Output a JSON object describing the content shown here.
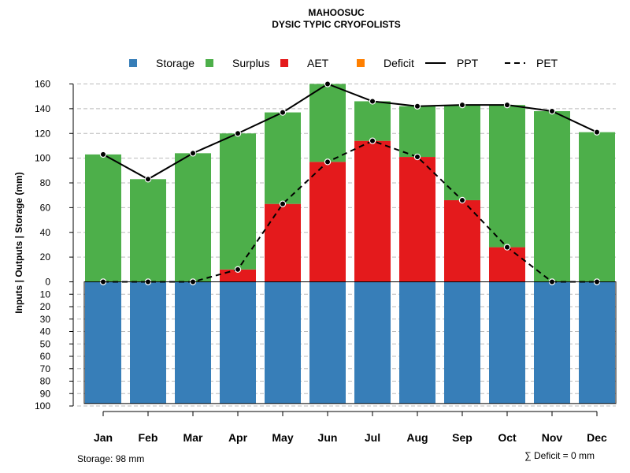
{
  "chart_data": {
    "type": "bar",
    "title": "MAHOOSUC",
    "subtitle": "DYSIC TYPIC CRYOFOLISTS",
    "ylabel": "Inputs | Outputs | Storage    (mm)",
    "categories": [
      "Jan",
      "Feb",
      "Mar",
      "Apr",
      "May",
      "Jun",
      "Jul",
      "Aug",
      "Sep",
      "Oct",
      "Nov",
      "Dec"
    ],
    "ylim_top": [
      0,
      160
    ],
    "ylim_bottom": [
      0,
      100
    ],
    "yticks_top": [
      "0",
      "20",
      "40",
      "60",
      "80",
      "100",
      "120",
      "140",
      "160"
    ],
    "yticks_bottom": [
      "10",
      "20",
      "30",
      "40",
      "50",
      "60",
      "70",
      "80",
      "90",
      "100"
    ],
    "series": [
      {
        "name": "Storage",
        "kind": "bar_below",
        "color": "#377EB8",
        "values": [
          98,
          98,
          98,
          98,
          98,
          98,
          98,
          98,
          98,
          98,
          98,
          98
        ]
      },
      {
        "name": "Surplus",
        "kind": "bar_stack",
        "color": "#4DAF4A",
        "values": [
          103,
          83,
          104,
          110,
          74,
          63,
          32,
          41,
          77,
          115,
          138,
          121
        ]
      },
      {
        "name": "AET",
        "kind": "bar_stack",
        "color": "#E41A1C",
        "values": [
          0,
          0,
          0,
          10,
          63,
          97,
          114,
          101,
          66,
          28,
          0,
          0
        ]
      },
      {
        "name": "Deficit",
        "kind": "bar_stack",
        "color": "#FF7F00",
        "values": [
          0,
          0,
          0,
          0,
          0,
          0,
          0,
          0,
          0,
          0,
          0,
          0
        ]
      },
      {
        "name": "PPT",
        "kind": "line_solid",
        "color": "#000000",
        "values": [
          103,
          83,
          104,
          120,
          137,
          160,
          146,
          142,
          143,
          143,
          138,
          121
        ]
      },
      {
        "name": "PET",
        "kind": "line_dashed",
        "color": "#000000",
        "values": [
          0,
          0,
          0,
          10,
          63,
          97,
          114,
          101,
          66,
          28,
          0,
          0
        ]
      }
    ],
    "legend": [
      {
        "label": "Storage",
        "symbol": "square",
        "color": "#377EB8"
      },
      {
        "label": "Surplus",
        "symbol": "square",
        "color": "#4DAF4A"
      },
      {
        "label": "AET",
        "symbol": "square",
        "color": "#E41A1C"
      },
      {
        "label": "Deficit",
        "symbol": "square",
        "color": "#FF7F00"
      },
      {
        "label": "PPT",
        "symbol": "line_solid",
        "color": "#000000"
      },
      {
        "label": "PET",
        "symbol": "line_dashed",
        "color": "#000000"
      }
    ],
    "legend_position": "top",
    "grid": true,
    "notes": {
      "storage": "Storage: 98 mm",
      "deficit": "∑ Deficit = 0 mm"
    }
  }
}
